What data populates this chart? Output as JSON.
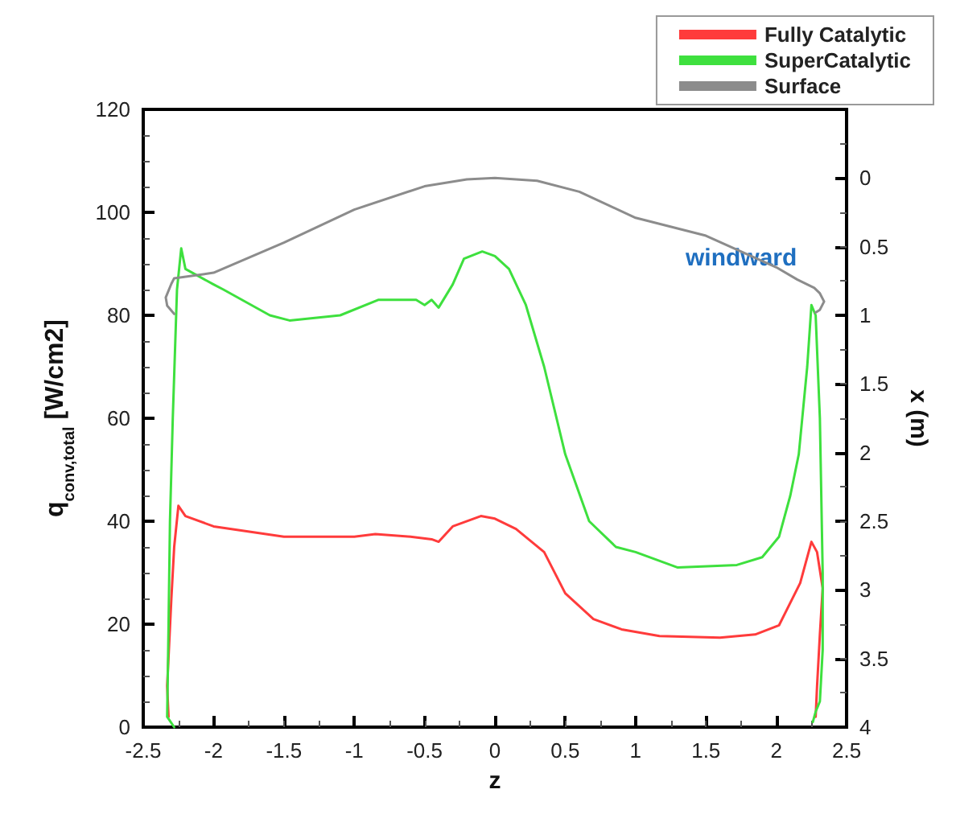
{
  "chart_data": {
    "type": "line",
    "xlabel": "z",
    "ylabel": "q$_{conv,total}$ [W/cm2]",
    "y2label": "x (m)",
    "xlim": [
      -2.5,
      2.5
    ],
    "xticks": [
      -2.5,
      -2,
      -1.5,
      -1,
      -0.5,
      0,
      0.5,
      1,
      1.5,
      2,
      2.5
    ],
    "ylim": [
      0,
      120
    ],
    "yticks": [
      0,
      20,
      40,
      60,
      80,
      100,
      120
    ],
    "y2lim": [
      4,
      -0.5
    ],
    "y2ticks": [
      0,
      0.5,
      1,
      1.5,
      2,
      2.5,
      3,
      3.5,
      4
    ],
    "grid": false,
    "legend": "top right",
    "marker": "none",
    "line_style": "solid",
    "annotations": [
      "windward"
    ],
    "series": [
      {
        "name": "Fully Catalytic",
        "color": "#ff3b3b",
        "x": [
          -2.32,
          -2.33,
          -2.3,
          -2.28,
          -2.25,
          -2.2,
          -2.0,
          -1.5,
          -1.0,
          -0.85,
          -0.6,
          -0.45,
          -0.4,
          -0.3,
          -0.1,
          0,
          0.15,
          0.35,
          0.5,
          0.7,
          0.9,
          1.17,
          1.6,
          1.85,
          2.02,
          2.17,
          2.25,
          2.29,
          2.33,
          2.31,
          2.29,
          2.28
        ],
        "values": [
          2,
          8,
          25,
          35,
          43,
          41,
          39,
          37,
          37,
          37.5,
          37,
          36.5,
          36,
          39,
          41,
          40.5,
          38.5,
          34,
          26,
          21,
          19,
          17.7,
          17.4,
          18,
          19.8,
          28,
          36,
          34,
          27,
          18,
          8,
          2
        ]
      },
      {
        "name": "SuperCatalytic",
        "color": "#3ee03e",
        "x": [
          -2.28,
          -2.33,
          -2.32,
          -2.31,
          -2.29,
          -2.26,
          -2.23,
          -2.2,
          -2.0,
          -1.93,
          -1.6,
          -1.46,
          -1.1,
          -0.83,
          -0.56,
          -0.5,
          -0.45,
          -0.4,
          -0.3,
          -0.22,
          -0.09,
          0,
          0.1,
          0.22,
          0.35,
          0.5,
          0.67,
          0.86,
          1.0,
          1.3,
          1.72,
          1.9,
          2.02,
          2.1,
          2.16,
          2.22,
          2.25,
          2.28,
          2.31,
          2.33,
          2.33,
          2.31,
          2.28,
          2.26
        ],
        "values": [
          0,
          2,
          20,
          40,
          60,
          85,
          93,
          89,
          86,
          85,
          80,
          79,
          80,
          83,
          83,
          82,
          83,
          81.5,
          86,
          91,
          92.4,
          91.5,
          89,
          82,
          70,
          53,
          40,
          35,
          34,
          31,
          31.5,
          33,
          37,
          45,
          53,
          70,
          82,
          80,
          60,
          30,
          15,
          5,
          3,
          1
        ]
      },
      {
        "name": "Surface",
        "color": "#8c8c8c",
        "axis": "y2",
        "x": [
          -2.28,
          -2.33,
          -2.34,
          -2.3,
          -2.28,
          -2.0,
          -1.5,
          -1.0,
          -0.5,
          -0.2,
          0,
          0.3,
          0.6,
          1.0,
          1.5,
          2.0,
          2.15,
          2.27,
          2.31,
          2.34,
          2.31,
          2.28
        ],
        "values": [
          0.99,
          0.93,
          0.87,
          0.77,
          0.73,
          0.69,
          0.47,
          0.23,
          0.06,
          0.01,
          0,
          0.02,
          0.1,
          0.29,
          0.42,
          0.65,
          0.74,
          0.8,
          0.84,
          0.9,
          0.96,
          0.98
        ]
      }
    ]
  }
}
